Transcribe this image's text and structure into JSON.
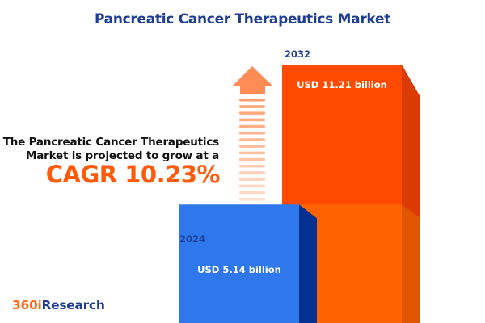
{
  "title": "Pancreatic Cancer Therapeutics Market",
  "description_line1": "The Pancreatic Cancer Therapeutics",
  "description_line2": "Market is projected to grow at a",
  "cagr_text": "CAGR 10.23%",
  "logo": {
    "part1": "360i",
    "part2": "Research"
  },
  "colors": {
    "title": "#1e3e96",
    "bar_2024": "#2f77ec",
    "bar_2032": "#ff4a00",
    "cagr": "#ff5a0a",
    "arrow": "#ff8c55"
  },
  "chart_data": {
    "type": "bar",
    "categories": [
      "2024",
      "2032"
    ],
    "values": [
      5.14,
      11.21
    ],
    "unit": "USD billion",
    "data_labels": [
      "USD 5.14 billion",
      "USD 11.21 billion"
    ],
    "cagr_percent": 10.23
  }
}
